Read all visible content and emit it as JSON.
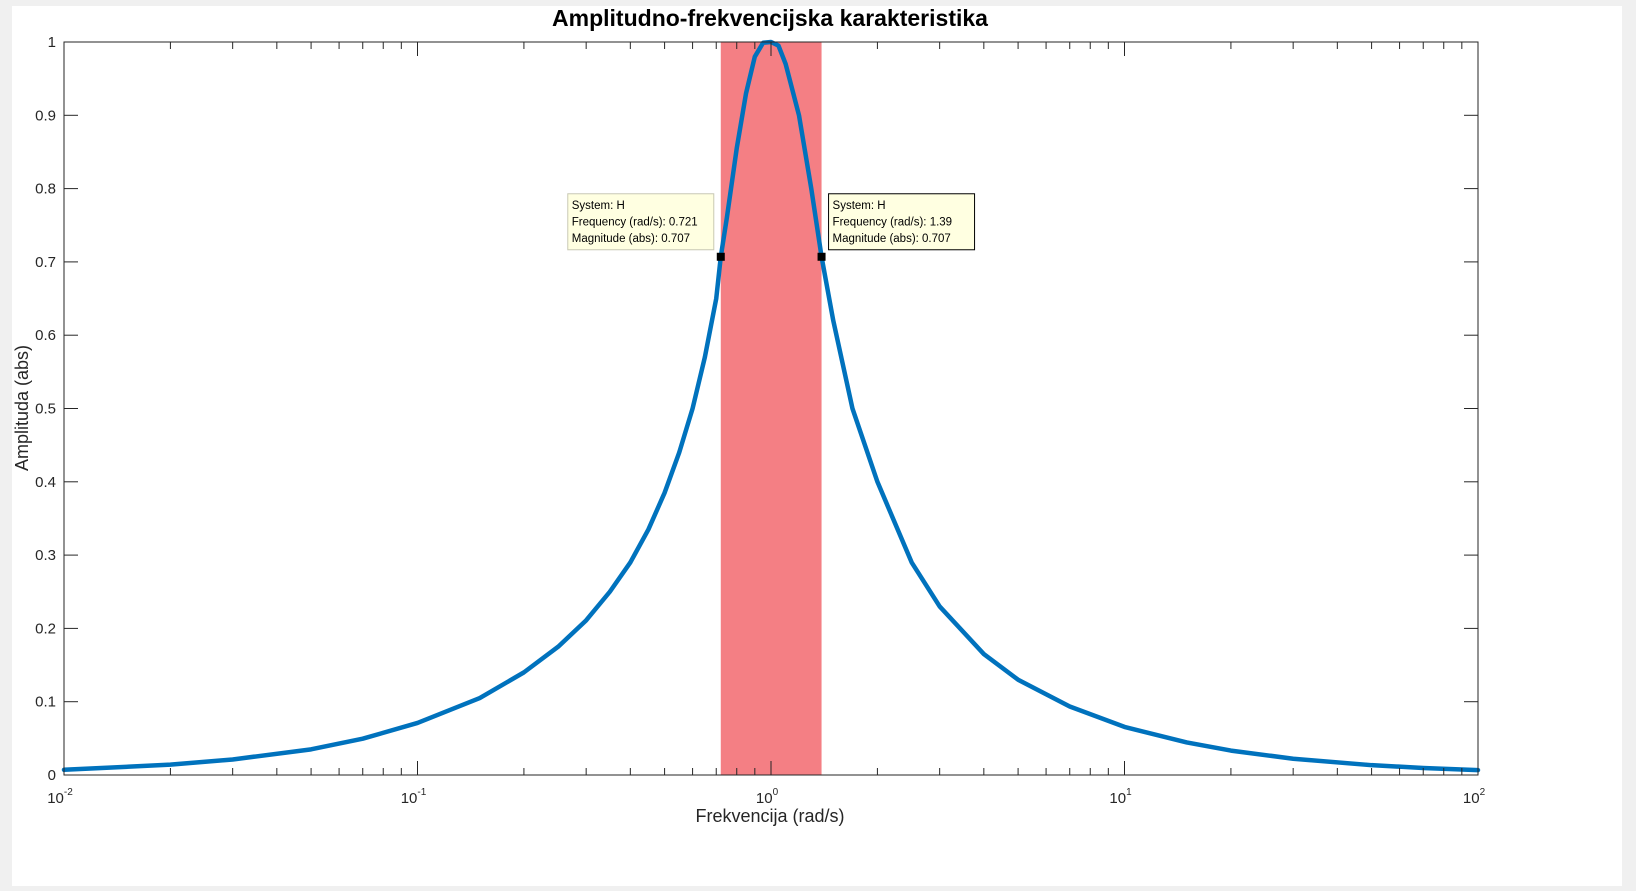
{
  "chart_data": {
    "type": "line",
    "title": "Amplitudno-frekvencijska karakteristika",
    "xlabel": "Frekvencija  (rad/s)",
    "ylabel": "Amplituda (abs)",
    "xscale": "log",
    "xlim": [
      0.01,
      100
    ],
    "ylim": [
      0,
      1
    ],
    "grid": false,
    "x_ticks": [
      {
        "base": "10",
        "exp": "-2",
        "value": 0.01
      },
      {
        "base": "10",
        "exp": "-1",
        "value": 0.1
      },
      {
        "base": "10",
        "exp": "0",
        "value": 1
      },
      {
        "base": "10",
        "exp": "1",
        "value": 10
      },
      {
        "base": "10",
        "exp": "2",
        "value": 100
      }
    ],
    "y_ticks": [
      "0",
      "0.1",
      "0.2",
      "0.3",
      "0.4",
      "0.5",
      "0.6",
      "0.7",
      "0.8",
      "0.9",
      "1"
    ],
    "series": [
      {
        "color": "#0072bd",
        "x": [
          0.01,
          0.02,
          0.03,
          0.05,
          0.07,
          0.1,
          0.15,
          0.2,
          0.25,
          0.3,
          0.35,
          0.4,
          0.45,
          0.5,
          0.55,
          0.6,
          0.65,
          0.7,
          0.721,
          0.75,
          0.8,
          0.85,
          0.9,
          0.95,
          1.0,
          1.05,
          1.1,
          1.2,
          1.3,
          1.39,
          1.5,
          1.7,
          2.0,
          2.5,
          3.0,
          4.0,
          5.0,
          7.0,
          10.0,
          15.0,
          20.0,
          30.0,
          50.0,
          70.0,
          100.0
        ],
        "y": [
          0.0071,
          0.0141,
          0.0212,
          0.035,
          0.0495,
          0.071,
          0.105,
          0.14,
          0.175,
          0.211,
          0.25,
          0.29,
          0.335,
          0.385,
          0.44,
          0.5,
          0.57,
          0.65,
          0.707,
          0.76,
          0.855,
          0.93,
          0.98,
          0.999,
          1.0,
          0.995,
          0.97,
          0.9,
          0.8,
          0.707,
          0.62,
          0.5,
          0.4,
          0.29,
          0.23,
          0.165,
          0.13,
          0.0935,
          0.0656,
          0.0444,
          0.0333,
          0.0222,
          0.0134,
          0.0096,
          0.0067
        ]
      }
    ],
    "shaded_band": {
      "x_from": 0.721,
      "x_to": 1.39,
      "color": "#f47f84"
    },
    "datatips": [
      {
        "line1": "System: H",
        "line2": "Frequency (rad/s): 0.721",
        "line3": "Magnitude (abs): 0.707",
        "x": 0.721,
        "y": 0.707
      },
      {
        "line1": "System: H",
        "line2": "Frequency (rad/s): 1.39",
        "line3": "Magnitude (abs): 0.707",
        "x": 1.39,
        "y": 0.707
      }
    ]
  }
}
